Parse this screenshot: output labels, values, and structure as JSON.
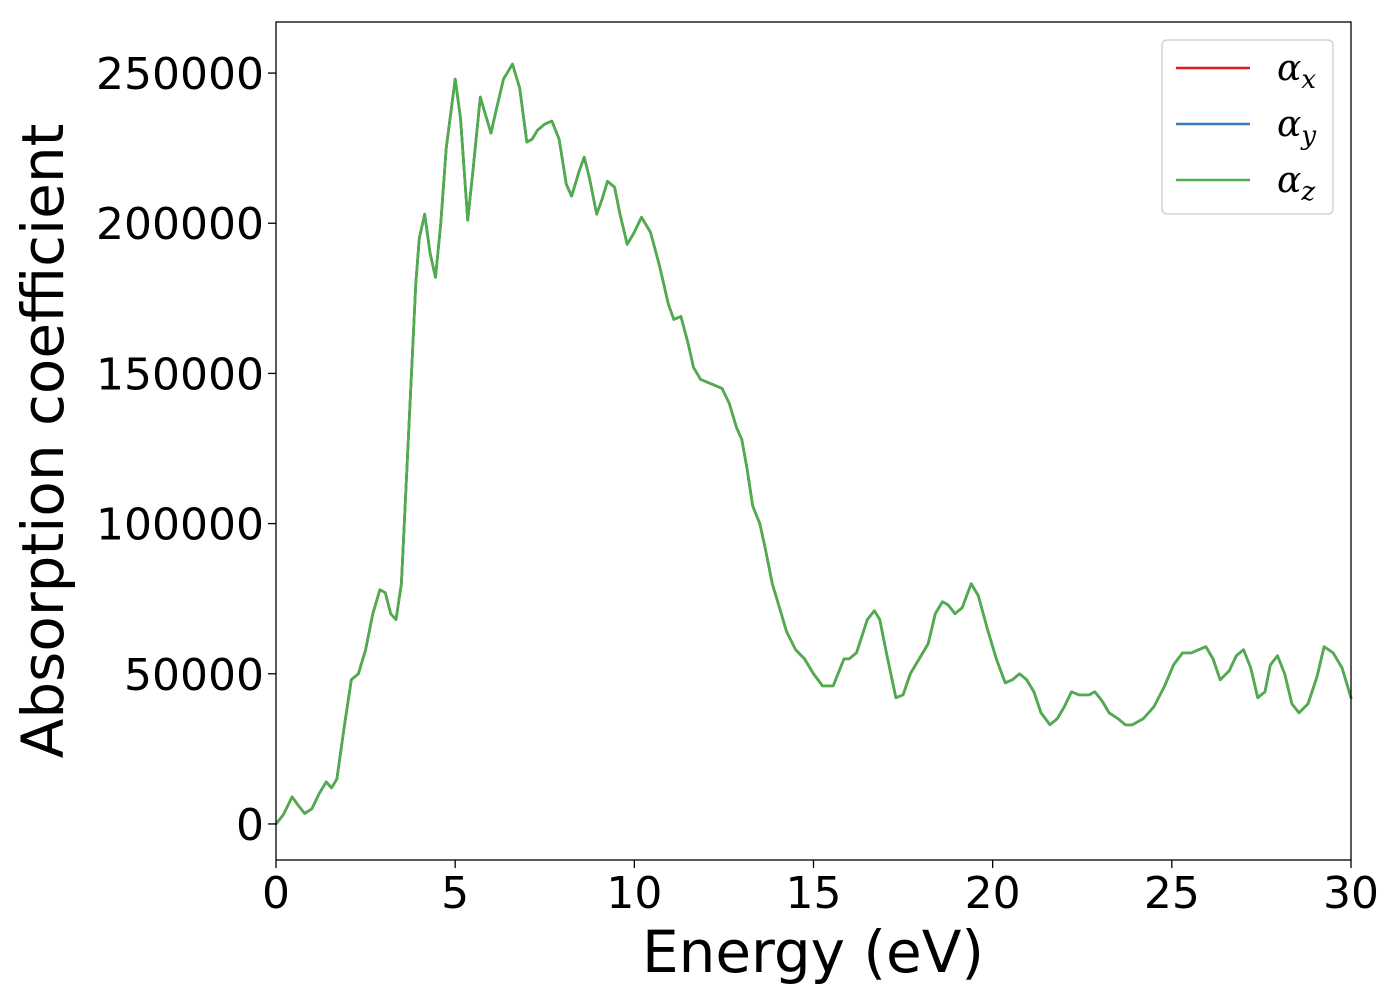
{
  "chart_data": {
    "type": "line",
    "xlabel": "Energy (eV)",
    "ylabel": "Absorption coefficient",
    "xlim": [
      0,
      30
    ],
    "ylim": [
      -12000,
      267000
    ],
    "xticks": [
      0,
      5,
      10,
      15,
      20,
      25,
      30
    ],
    "yticks": [
      0,
      50000,
      100000,
      150000,
      200000,
      250000
    ],
    "grid": false,
    "legend_position": "top-right",
    "series": [
      {
        "name": "αx",
        "symbol": "α",
        "subscript": "x",
        "color": "#e41a1c"
      },
      {
        "name": "αy",
        "symbol": "α",
        "subscript": "y",
        "color": "#377eb8"
      },
      {
        "name": "αz",
        "symbol": "α",
        "subscript": "z",
        "color": "#4daf4a"
      }
    ],
    "x": [
      0.0,
      0.2,
      0.45,
      0.6,
      0.8,
      1.0,
      1.2,
      1.4,
      1.55,
      1.7,
      1.9,
      2.1,
      2.3,
      2.5,
      2.7,
      2.9,
      3.05,
      3.2,
      3.35,
      3.5,
      3.7,
      3.9,
      4.0,
      4.15,
      4.3,
      4.45,
      4.6,
      4.75,
      5.0,
      5.15,
      5.35,
      5.5,
      5.7,
      5.85,
      6.0,
      6.15,
      6.35,
      6.6,
      6.8,
      7.0,
      7.15,
      7.3,
      7.5,
      7.7,
      7.9,
      8.1,
      8.25,
      8.45,
      8.6,
      8.75,
      8.95,
      9.1,
      9.25,
      9.45,
      9.6,
      9.8,
      10.0,
      10.2,
      10.45,
      10.7,
      10.95,
      11.1,
      11.3,
      11.5,
      11.65,
      11.85,
      12.05,
      12.25,
      12.45,
      12.65,
      12.85,
      13.0,
      13.15,
      13.3,
      13.5,
      13.65,
      13.85,
      14.05,
      14.25,
      14.5,
      14.75,
      15.0,
      15.25,
      15.55,
      15.85,
      16.0,
      16.2,
      16.5,
      16.7,
      16.85,
      17.05,
      17.3,
      17.5,
      17.7,
      17.95,
      18.2,
      18.4,
      18.6,
      18.75,
      18.95,
      19.15,
      19.4,
      19.6,
      19.85,
      20.1,
      20.35,
      20.55,
      20.75,
      20.95,
      21.15,
      21.35,
      21.6,
      21.8,
      22.0,
      22.2,
      22.4,
      22.55,
      22.7,
      22.85,
      23.05,
      23.25,
      23.5,
      23.7,
      23.9,
      24.2,
      24.5,
      24.8,
      25.05,
      25.3,
      25.55,
      25.75,
      25.95,
      26.15,
      26.35,
      26.6,
      26.8,
      27.0,
      27.2,
      27.4,
      27.6,
      27.75,
      27.95,
      28.15,
      28.35,
      28.55,
      28.8,
      29.05,
      29.25,
      29.5,
      29.75,
      30.0
    ],
    "y": [
      0,
      3000,
      9000,
      6500,
      3500,
      5000,
      10000,
      14000,
      12000,
      15000,
      32000,
      48000,
      50000,
      58000,
      70000,
      78000,
      77000,
      70000,
      68000,
      80000,
      130000,
      180000,
      195000,
      203000,
      190000,
      182000,
      200000,
      225000,
      248000,
      235000,
      201000,
      218000,
      242000,
      236000,
      230000,
      238000,
      248000,
      253000,
      245000,
      227000,
      228000,
      231000,
      233000,
      234000,
      228000,
      213000,
      209000,
      217000,
      222000,
      215000,
      203000,
      208000,
      214000,
      212000,
      203000,
      193000,
      197000,
      202000,
      197000,
      186000,
      173000,
      168000,
      169000,
      160000,
      152000,
      148000,
      147000,
      146000,
      145000,
      140000,
      132000,
      128000,
      118000,
      106000,
      100000,
      92000,
      80000,
      72000,
      64000,
      58000,
      55000,
      50000,
      46000,
      46000,
      55000,
      55000,
      57000,
      68000,
      71000,
      68000,
      56000,
      42000,
      43000,
      50000,
      55000,
      60000,
      70000,
      74000,
      73000,
      70000,
      72000,
      80000,
      76000,
      65000,
      55000,
      47000,
      48000,
      50000,
      48000,
      44000,
      37000,
      33000,
      35000,
      39000,
      44000,
      43000,
      43000,
      43000,
      44000,
      41000,
      37000,
      35000,
      33000,
      33000,
      35000,
      39000,
      46000,
      53000,
      57000,
      57000,
      58000,
      59000,
      55000,
      48000,
      51000,
      56000,
      58000,
      52000,
      42000,
      44000,
      53000,
      56000,
      50000,
      40000,
      37000,
      40000,
      49000,
      59000,
      57000,
      52000,
      42000
    ]
  }
}
